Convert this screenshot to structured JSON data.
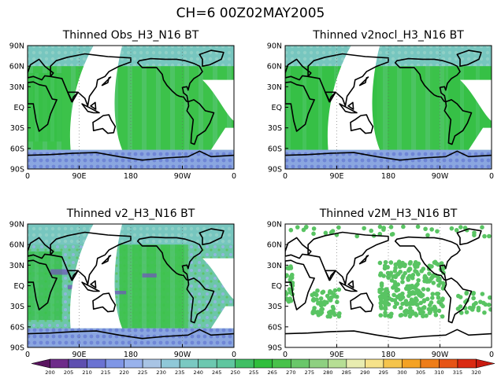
{
  "figure": {
    "title": "CH=6   00Z02MAY2005"
  },
  "panels": [
    {
      "title": "Thinned Obs_H3_N16 BT",
      "lat_labels": [
        "90N",
        "60N",
        "30N",
        "EQ",
        "30S",
        "60S",
        "90S"
      ],
      "lon_labels": [
        "0",
        "90E",
        "180",
        "90W",
        "0"
      ],
      "coverage": "swath",
      "dominant_color": "#3cc24a"
    },
    {
      "title": "Thinned v2nocl_H3_N16 BT",
      "lat_labels": [
        "90N",
        "60N",
        "30N",
        "EQ",
        "30S",
        "60S",
        "90S"
      ],
      "lon_labels": [
        "0",
        "90E",
        "180",
        "90W",
        "0"
      ],
      "coverage": "swath",
      "dominant_color": "#3cc24a"
    },
    {
      "title": "Thinned v2_H3_N16 BT",
      "lat_labels": [
        "90N",
        "60N",
        "30N",
        "EQ",
        "30S",
        "60S",
        "90S"
      ],
      "lon_labels": [
        "0",
        "90E",
        "180",
        "90W",
        "0"
      ],
      "coverage": "swath",
      "dominant_color": "#3cc24a"
    },
    {
      "title": "Thinned v2M_H3_N16 BT",
      "lat_labels": [
        "90N",
        "60N",
        "30N",
        "EQ",
        "30S",
        "60S",
        "90S"
      ],
      "lon_labels": [
        "0",
        "90E",
        "180",
        "90W",
        "0"
      ],
      "coverage": "sparse",
      "dominant_color": "#59c463"
    }
  ],
  "colorbar": {
    "labels": [
      "200",
      "205",
      "210",
      "215",
      "220",
      "225",
      "230",
      "235",
      "240",
      "245",
      "250",
      "255",
      "265",
      "270",
      "275",
      "280",
      "285",
      "290",
      "295",
      "300",
      "305",
      "310",
      "315",
      "320"
    ],
    "colors": [
      "#5a1560",
      "#6e2b8a",
      "#5e4fb0",
      "#6a72d2",
      "#7f96e6",
      "#98b2ec",
      "#a8c4e4",
      "#8fc8d8",
      "#7ac9c2",
      "#6cc8b0",
      "#5fc69f",
      "#3fbf64",
      "#2fbe3c",
      "#48c24a",
      "#6ac76a",
      "#8ed080",
      "#b6de94",
      "#e8ecb0",
      "#f6e28a",
      "#f5c44c",
      "#f4a224",
      "#ee7d18",
      "#e65416",
      "#da2a12",
      "#c81a10"
    ]
  }
}
